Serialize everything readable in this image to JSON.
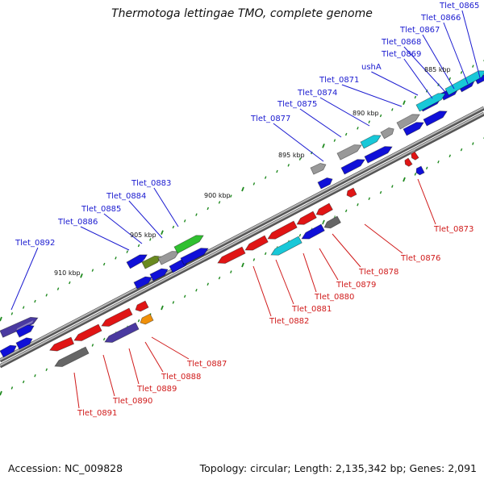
{
  "title": "Thermotoga lettingae TMO, complete genome",
  "footer": {
    "accession": "Accession: NC_009828",
    "topology": "Topology: circular; Length: 2,135,342 bp; Genes: 2,091"
  },
  "colors": {
    "forward_label": "#1a1ad0",
    "reverse_label": "#d01a1a",
    "backbone": "#9a9a9a",
    "tick": "#1f8a1f"
  },
  "scale_labels": [
    "885 kbp",
    "890 kbp",
    "895 kbp",
    "900 kbp",
    "905 kbp",
    "910 kbp"
  ],
  "forward_genes": [
    "Tlet_0865",
    "Tlet_0866",
    "Tlet_0867",
    "Tlet_0868",
    "Tlet_0869",
    "ushA",
    "Tlet_0871",
    "Tlet_0874",
    "Tlet_0875",
    "Tlet_0877",
    "Tlet_0883",
    "Tlet_0884",
    "Tlet_0885",
    "Tlet_0886",
    "Tlet_0892"
  ],
  "reverse_genes": [
    "Tlet_0873",
    "Tlet_0876",
    "Tlet_0878",
    "Tlet_0879",
    "Tlet_0880",
    "Tlet_0881",
    "Tlet_0882",
    "Tlet_0887",
    "Tlet_0888",
    "Tlet_0889",
    "Tlet_0890",
    "Tlet_0891"
  ]
}
